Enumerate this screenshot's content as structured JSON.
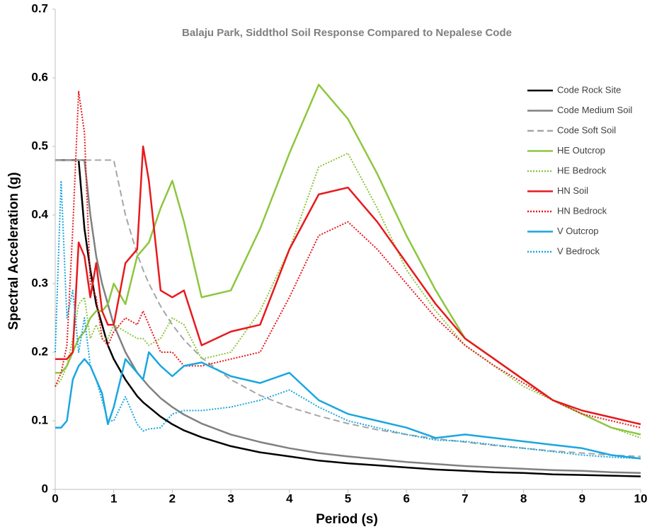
{
  "chart_data": {
    "type": "line",
    "title": "Balaju Park, Siddthol Soil Response Compared to  Nepalese Code",
    "x_label": "Period (s)",
    "y_label": "Spectral Acceleration (g)",
    "x": [
      0,
      0.1,
      0.2,
      0.3,
      0.4,
      0.5,
      0.6,
      0.7,
      0.8,
      0.9,
      1,
      1.2,
      1.4,
      1.5,
      1.6,
      1.8,
      2,
      2.2,
      2.5,
      3,
      3.5,
      4,
      4.5,
      5,
      5.5,
      6,
      6.5,
      7,
      7.5,
      8,
      8.5,
      9,
      9.5,
      10
    ],
    "xlim": [
      0,
      10
    ],
    "xticks": [
      0,
      1,
      2,
      3,
      4,
      5,
      6,
      7,
      8,
      9,
      10
    ],
    "ylim": [
      0,
      0.7
    ],
    "yticks": [
      0,
      0.1,
      0.2,
      0.3,
      0.4,
      0.5,
      0.6,
      0.7
    ],
    "grid": false,
    "legend": "upper right",
    "series": [
      {
        "name": "Code Rock Site",
        "color": "#000000",
        "dash": "solid",
        "values": [
          0.48,
          0.48,
          0.48,
          0.48,
          0.48,
          0.38,
          0.32,
          0.27,
          0.24,
          0.21,
          0.19,
          0.16,
          0.136,
          0.127,
          0.12,
          0.106,
          0.095,
          0.086,
          0.076,
          0.063,
          0.054,
          0.048,
          0.042,
          0.038,
          0.035,
          0.032,
          0.029,
          0.027,
          0.025,
          0.024,
          0.022,
          0.021,
          0.02,
          0.019
        ]
      },
      {
        "name": "Code Medium Soil",
        "color": "#808080",
        "dash": "solid",
        "values": [
          0.48,
          0.48,
          0.48,
          0.48,
          0.48,
          0.48,
          0.4,
          0.34,
          0.3,
          0.27,
          0.24,
          0.2,
          0.17,
          0.16,
          0.15,
          0.133,
          0.12,
          0.109,
          0.096,
          0.08,
          0.069,
          0.06,
          0.053,
          0.048,
          0.044,
          0.04,
          0.037,
          0.034,
          0.032,
          0.03,
          0.028,
          0.027,
          0.025,
          0.024
        ]
      },
      {
        "name": "Code Soft Soil",
        "color": "#a6a6a6",
        "dash": "dashed",
        "values": [
          0.48,
          0.48,
          0.48,
          0.48,
          0.48,
          0.48,
          0.48,
          0.48,
          0.48,
          0.48,
          0.48,
          0.4,
          0.343,
          0.32,
          0.3,
          0.267,
          0.24,
          0.218,
          0.192,
          0.16,
          0.137,
          0.12,
          0.107,
          0.096,
          0.087,
          0.08,
          0.074,
          0.069,
          0.064,
          0.06,
          0.056,
          0.053,
          0.05,
          0.048
        ]
      },
      {
        "name": "HE Outcrop",
        "color": "#8dc63f",
        "dash": "solid",
        "values": [
          0.17,
          0.17,
          0.18,
          0.2,
          0.22,
          0.23,
          0.25,
          0.26,
          0.26,
          0.27,
          0.3,
          0.27,
          0.34,
          0.35,
          0.36,
          0.41,
          0.45,
          0.39,
          0.28,
          0.29,
          0.38,
          0.49,
          0.59,
          0.54,
          0.46,
          0.37,
          0.29,
          0.22,
          0.19,
          0.16,
          0.13,
          0.11,
          0.09,
          0.08
        ]
      },
      {
        "name": "HE Bedrock",
        "color": "#8dc63f",
        "dash": "dotted",
        "values": [
          0.15,
          0.16,
          0.18,
          0.22,
          0.27,
          0.28,
          0.22,
          0.24,
          0.22,
          0.22,
          0.24,
          0.23,
          0.22,
          0.22,
          0.21,
          0.22,
          0.25,
          0.24,
          0.19,
          0.2,
          0.26,
          0.35,
          0.47,
          0.49,
          0.41,
          0.32,
          0.26,
          0.21,
          0.18,
          0.15,
          0.13,
          0.11,
          0.09,
          0.075
        ]
      },
      {
        "name": "HN Soil",
        "color": "#e8191c",
        "dash": "solid",
        "values": [
          0.19,
          0.19,
          0.19,
          0.2,
          0.36,
          0.34,
          0.28,
          0.33,
          0.26,
          0.24,
          0.24,
          0.33,
          0.35,
          0.5,
          0.45,
          0.29,
          0.28,
          0.29,
          0.21,
          0.23,
          0.24,
          0.35,
          0.43,
          0.44,
          0.39,
          0.33,
          0.27,
          0.22,
          0.19,
          0.16,
          0.13,
          0.115,
          0.105,
          0.095
        ]
      },
      {
        "name": "HN Bedrock",
        "color": "#e8191c",
        "dash": "dotted",
        "values": [
          0.15,
          0.17,
          0.21,
          0.38,
          0.58,
          0.52,
          0.3,
          0.28,
          0.22,
          0.21,
          0.23,
          0.25,
          0.24,
          0.26,
          0.24,
          0.2,
          0.2,
          0.18,
          0.18,
          0.19,
          0.2,
          0.28,
          0.37,
          0.39,
          0.35,
          0.3,
          0.25,
          0.21,
          0.18,
          0.155,
          0.13,
          0.11,
          0.1,
          0.09
        ]
      },
      {
        "name": "V Outcrop",
        "color": "#1aa6e0",
        "dash": "solid",
        "values": [
          0.09,
          0.09,
          0.1,
          0.16,
          0.18,
          0.19,
          0.18,
          0.16,
          0.14,
          0.095,
          0.12,
          0.19,
          0.17,
          0.16,
          0.2,
          0.18,
          0.165,
          0.18,
          0.185,
          0.165,
          0.155,
          0.17,
          0.13,
          0.11,
          0.1,
          0.09,
          0.075,
          0.08,
          0.075,
          0.07,
          0.065,
          0.06,
          0.05,
          0.045
        ]
      },
      {
        "name": "V Bedrock",
        "color": "#1aa6e0",
        "dash": "dotted",
        "values": [
          0.2,
          0.45,
          0.25,
          0.29,
          0.2,
          0.25,
          0.18,
          0.16,
          0.13,
          0.1,
          0.1,
          0.135,
          0.095,
          0.085,
          0.088,
          0.09,
          0.11,
          0.115,
          0.115,
          0.12,
          0.13,
          0.145,
          0.12,
          0.1,
          0.09,
          0.08,
          0.072,
          0.07,
          0.065,
          0.06,
          0.055,
          0.05,
          0.047,
          0.045
        ]
      }
    ]
  }
}
